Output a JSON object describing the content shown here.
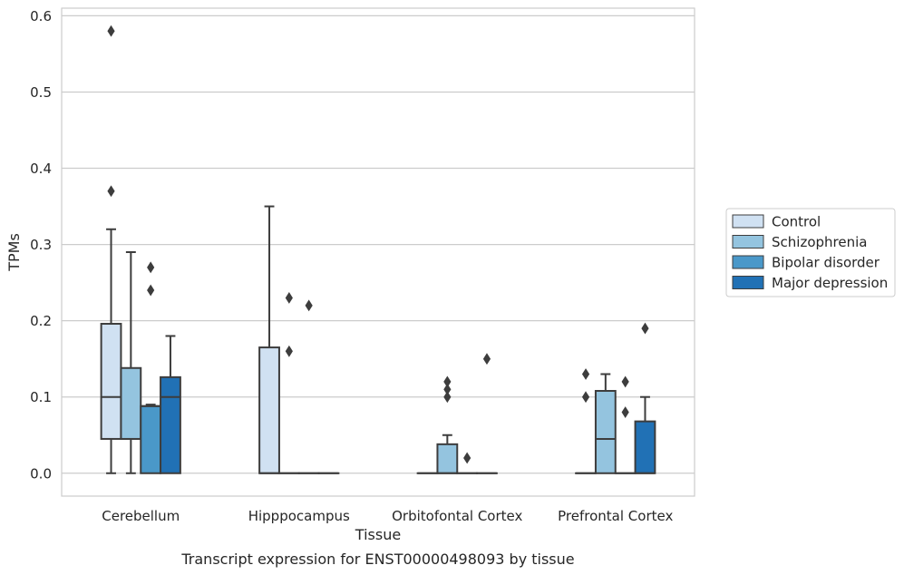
{
  "chart_data": {
    "type": "boxplot",
    "title": "",
    "caption": "Transcript expression for ENST00000498093 by tissue",
    "xlabel": "Tissue",
    "ylabel": "TPMs",
    "ylim": [
      -0.03,
      0.61
    ],
    "yticks": [
      "0.0",
      "0.1",
      "0.2",
      "0.3",
      "0.4",
      "0.5",
      "0.6"
    ],
    "grid": "horizontal",
    "legend_position": "right",
    "categories": [
      "Cerebellum",
      "Hipppocampus",
      "Orbitofontal Cortex",
      "Prefrontal Cortex"
    ],
    "series": [
      {
        "name": "Control",
        "color": "#d0e1f2",
        "boxes": [
          {
            "q1": 0.045,
            "median": 0.1,
            "q3": 0.196,
            "whisker_low": 0.0,
            "whisker_high": 0.32,
            "outliers": [
              0.58,
              0.37
            ]
          },
          {
            "q1": 0.0,
            "median": 0.0,
            "q3": 0.165,
            "whisker_low": 0.0,
            "whisker_high": 0.35,
            "outliers": []
          },
          {
            "q1": 0.0,
            "median": 0.0,
            "q3": 0.0,
            "whisker_low": 0.0,
            "whisker_high": 0.0,
            "outliers": []
          },
          {
            "q1": 0.0,
            "median": 0.0,
            "q3": 0.0,
            "whisker_low": 0.0,
            "whisker_high": 0.0,
            "outliers": [
              0.13,
              0.1
            ]
          }
        ]
      },
      {
        "name": "Schizophrenia",
        "color": "#94c4df",
        "boxes": [
          {
            "q1": 0.045,
            "median": 0.045,
            "q3": 0.138,
            "whisker_low": 0.0,
            "whisker_high": 0.29,
            "outliers": []
          },
          {
            "q1": 0.0,
            "median": 0.0,
            "q3": 0.0,
            "whisker_low": 0.0,
            "whisker_high": 0.0,
            "outliers": [
              0.23,
              0.16
            ]
          },
          {
            "q1": 0.0,
            "median": 0.0,
            "q3": 0.038,
            "whisker_low": 0.0,
            "whisker_high": 0.05,
            "outliers": [
              0.12,
              0.11,
              0.1
            ]
          },
          {
            "q1": 0.0,
            "median": 0.045,
            "q3": 0.108,
            "whisker_low": 0.0,
            "whisker_high": 0.13,
            "outliers": []
          }
        ]
      },
      {
        "name": "Bipolar disorder",
        "color": "#4a98c9",
        "boxes": [
          {
            "q1": 0.0,
            "median": 0.088,
            "q3": 0.088,
            "whisker_low": 0.0,
            "whisker_high": 0.09,
            "outliers": [
              0.27,
              0.24
            ]
          },
          {
            "q1": 0.0,
            "median": 0.0,
            "q3": 0.0,
            "whisker_low": 0.0,
            "whisker_high": 0.0,
            "outliers": [
              0.22
            ]
          },
          {
            "q1": 0.0,
            "median": 0.0,
            "q3": 0.0,
            "whisker_low": 0.0,
            "whisker_high": 0.0,
            "outliers": [
              0.02
            ]
          },
          {
            "q1": 0.0,
            "median": 0.0,
            "q3": 0.0,
            "whisker_low": 0.0,
            "whisker_high": 0.0,
            "outliers": [
              0.12,
              0.08
            ]
          }
        ]
      },
      {
        "name": "Major depression",
        "color": "#2171b5",
        "boxes": [
          {
            "q1": 0.0,
            "median": 0.1,
            "q3": 0.126,
            "whisker_low": 0.0,
            "whisker_high": 0.18,
            "outliers": []
          },
          {
            "q1": 0.0,
            "median": 0.0,
            "q3": 0.0,
            "whisker_low": 0.0,
            "whisker_high": 0.0,
            "outliers": []
          },
          {
            "q1": 0.0,
            "median": 0.0,
            "q3": 0.0,
            "whisker_low": 0.0,
            "whisker_high": 0.0,
            "outliers": [
              0.15
            ]
          },
          {
            "q1": 0.0,
            "median": 0.0,
            "q3": 0.068,
            "whisker_low": 0.0,
            "whisker_high": 0.1,
            "outliers": [
              0.19
            ]
          }
        ]
      }
    ]
  }
}
